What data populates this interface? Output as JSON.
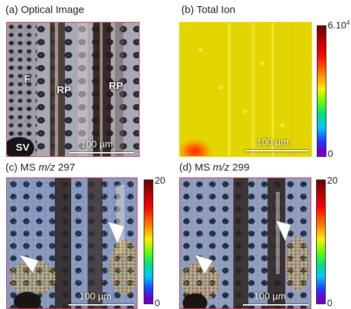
{
  "panels": {
    "a": {
      "label_prefix": "(a) ",
      "title": "Optical Image",
      "labels": [
        "F",
        "RP",
        "RP",
        "SV"
      ],
      "scale": "100 µm"
    },
    "b": {
      "title": "(b) Total Ion",
      "scale": "100 µm",
      "cbar_max": "6.10",
      "cbar_max_exp": "4",
      "cbar_min": "0"
    },
    "c": {
      "title_prefix": "(c) MS ",
      "title_mz": "m/z",
      "title_value": " 297",
      "scale": "100 µm",
      "cbar_max": "20",
      "cbar_min": "0"
    },
    "d": {
      "title_prefix": "(d) MS ",
      "title_mz": "m/z",
      "title_value": " 299",
      "scale": "100 µm",
      "cbar_max": "20",
      "cbar_min": "0"
    }
  },
  "colors": {
    "frame": "#d03a52",
    "ion_yellow": "#e6d800",
    "hot_red": "#ff2a00"
  }
}
